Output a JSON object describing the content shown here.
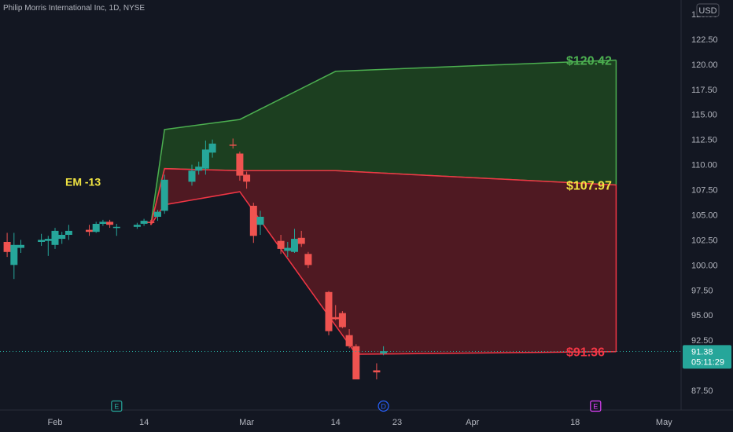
{
  "header": {
    "title": "Philip Morris International Inc, 1D, NYSE",
    "currency": "USD"
  },
  "chart_data": {
    "type": "candlestick",
    "title": "Philip Morris International Inc, 1D, NYSE",
    "ylim": [
      86.0,
      126.0
    ],
    "y_ticks": [
      87.5,
      90.0,
      92.5,
      95.0,
      97.5,
      100.0,
      102.5,
      105.0,
      107.5,
      110.0,
      112.5,
      115.0,
      117.5,
      120.0,
      122.5,
      125.0
    ],
    "y_tick_labels": [
      "87.50",
      "90.00",
      "92.50",
      "95.00",
      "97.50",
      "100.00",
      "102.50",
      "105.00",
      "107.50",
      "110.00",
      "112.50",
      "115.00",
      "117.50",
      "120.00",
      "122.50",
      "125.00"
    ],
    "x_ticks": [
      {
        "label": "Feb",
        "date": "2023-02-01"
      },
      {
        "label": "14",
        "date": "2023-02-14"
      },
      {
        "label": "Mar",
        "date": "2023-03-01"
      },
      {
        "label": "14",
        "date": "2023-03-14"
      },
      {
        "label": "23",
        "date": "2023-03-23"
      },
      {
        "label": "Apr",
        "date": "2023-04-03"
      },
      {
        "label": "18",
        "date": "2023-04-18"
      },
      {
        "label": "May",
        "date": "2023-05-01"
      }
    ],
    "candles": [
      {
        "date": "2023-01-25",
        "open": 102.3,
        "high": 103.2,
        "low": 100.8,
        "close": 101.3
      },
      {
        "date": "2023-01-26",
        "open": 100.0,
        "high": 103.2,
        "low": 98.6,
        "close": 102.0
      },
      {
        "date": "2023-01-27",
        "open": 101.7,
        "high": 102.5,
        "low": 101.2,
        "close": 102.0
      },
      {
        "date": "2023-01-30",
        "open": 102.3,
        "high": 103.1,
        "low": 101.9,
        "close": 102.5
      },
      {
        "date": "2023-01-31",
        "open": 102.4,
        "high": 102.9,
        "low": 100.9,
        "close": 102.6
      },
      {
        "date": "2023-02-01",
        "open": 102.0,
        "high": 103.7,
        "low": 101.6,
        "close": 103.4
      },
      {
        "date": "2023-02-02",
        "open": 102.6,
        "high": 103.3,
        "low": 102.1,
        "close": 103.0
      },
      {
        "date": "2023-02-03",
        "open": 103.0,
        "high": 104.0,
        "low": 102.5,
        "close": 103.4
      },
      {
        "date": "2023-02-06",
        "open": 103.5,
        "high": 104.0,
        "low": 102.9,
        "close": 103.3
      },
      {
        "date": "2023-02-07",
        "open": 103.3,
        "high": 104.3,
        "low": 103.2,
        "close": 104.1
      },
      {
        "date": "2023-02-08",
        "open": 104.1,
        "high": 104.5,
        "low": 103.9,
        "close": 104.3
      },
      {
        "date": "2023-02-09",
        "open": 104.3,
        "high": 104.5,
        "low": 103.7,
        "close": 104.0
      },
      {
        "date": "2023-02-10",
        "open": 103.8,
        "high": 104.1,
        "low": 102.9,
        "close": 103.8
      },
      {
        "date": "2023-02-13",
        "open": 103.8,
        "high": 104.2,
        "low": 103.6,
        "close": 104.0
      },
      {
        "date": "2023-02-14",
        "open": 104.1,
        "high": 104.6,
        "low": 103.9,
        "close": 104.4
      },
      {
        "date": "2023-02-15",
        "open": 104.3,
        "high": 104.5,
        "low": 104.0,
        "close": 104.2
      },
      {
        "date": "2023-02-16",
        "open": 104.8,
        "high": 105.5,
        "low": 104.4,
        "close": 105.3
      },
      {
        "date": "2023-02-17",
        "open": 105.4,
        "high": 109.0,
        "low": 105.1,
        "close": 108.5
      },
      {
        "date": "2023-02-21",
        "open": 108.3,
        "high": 110.0,
        "low": 107.9,
        "close": 109.4
      },
      {
        "date": "2023-02-22",
        "open": 109.4,
        "high": 110.3,
        "low": 109.0,
        "close": 109.8
      },
      {
        "date": "2023-02-23",
        "open": 109.6,
        "high": 112.4,
        "low": 109.0,
        "close": 111.5
      },
      {
        "date": "2023-02-24",
        "open": 111.2,
        "high": 112.5,
        "low": 110.7,
        "close": 112.1
      },
      {
        "date": "2023-02-27",
        "open": 112.0,
        "high": 112.6,
        "low": 111.6,
        "close": 111.9
      },
      {
        "date": "2023-02-28",
        "open": 111.1,
        "high": 111.3,
        "low": 108.4,
        "close": 108.9
      },
      {
        "date": "2023-03-01",
        "open": 109.0,
        "high": 109.3,
        "low": 107.6,
        "close": 108.3
      },
      {
        "date": "2023-03-02",
        "open": 105.9,
        "high": 106.2,
        "low": 102.2,
        "close": 102.9
      },
      {
        "date": "2023-03-03",
        "open": 104.0,
        "high": 105.4,
        "low": 103.0,
        "close": 104.8
      },
      {
        "date": "2023-03-06",
        "open": 102.4,
        "high": 103.0,
        "low": 101.1,
        "close": 101.6
      },
      {
        "date": "2023-03-07",
        "open": 101.4,
        "high": 102.3,
        "low": 100.8,
        "close": 101.7
      },
      {
        "date": "2023-03-08",
        "open": 101.3,
        "high": 103.6,
        "low": 101.2,
        "close": 102.6
      },
      {
        "date": "2023-03-09",
        "open": 102.7,
        "high": 103.4,
        "low": 101.8,
        "close": 102.1
      },
      {
        "date": "2023-03-10",
        "open": 101.1,
        "high": 101.3,
        "low": 99.7,
        "close": 100.0
      },
      {
        "date": "2023-03-13",
        "open": 97.3,
        "high": 97.4,
        "low": 93.0,
        "close": 93.4
      },
      {
        "date": "2023-03-14",
        "open": 94.8,
        "high": 96.0,
        "low": 94.5,
        "close": 94.6
      },
      {
        "date": "2023-03-15",
        "open": 95.2,
        "high": 95.4,
        "low": 93.7,
        "close": 93.8
      },
      {
        "date": "2023-03-16",
        "open": 93.0,
        "high": 93.6,
        "low": 91.7,
        "close": 91.9
      },
      {
        "date": "2023-03-17",
        "open": 91.9,
        "high": 92.1,
        "low": 88.6,
        "close": 88.6
      },
      {
        "date": "2023-03-20",
        "open": 89.5,
        "high": 90.2,
        "low": 88.6,
        "close": 89.3
      },
      {
        "date": "2023-03-21",
        "open": 91.2,
        "high": 91.9,
        "low": 91.0,
        "close": 91.4
      }
    ],
    "bands": [
      {
        "name": "upper",
        "color": "#1e4620",
        "line_color": "#4caf50",
        "top": [
          {
            "date": "2023-02-15",
            "value": 104.0
          },
          {
            "date": "2023-02-17",
            "value": 113.5
          },
          {
            "date": "2023-02-28",
            "value": 114.5
          },
          {
            "date": "2023-03-14",
            "value": 119.3
          },
          {
            "date": "2023-04-24",
            "value": 120.42
          }
        ],
        "bottom": [
          {
            "date": "2023-02-15",
            "value": 104.0
          },
          {
            "date": "2023-02-17",
            "value": 109.6
          },
          {
            "date": "2023-02-28",
            "value": 109.4
          },
          {
            "date": "2023-03-14",
            "value": 109.4
          },
          {
            "date": "2023-04-24",
            "value": 107.97
          }
        ]
      },
      {
        "name": "lower",
        "color": "#5a1a22",
        "line_color": "#f23645",
        "top": [
          {
            "date": "2023-02-15",
            "value": 104.0
          },
          {
            "date": "2023-02-17",
            "value": 109.6
          },
          {
            "date": "2023-02-28",
            "value": 109.4
          },
          {
            "date": "2023-03-14",
            "value": 109.4
          },
          {
            "date": "2023-04-24",
            "value": 107.97
          }
        ],
        "bottom": [
          {
            "date": "2023-02-15",
            "value": 104.0
          },
          {
            "date": "2023-02-17",
            "value": 106.0
          },
          {
            "date": "2023-02-28",
            "value": 107.3
          },
          {
            "date": "2023-03-17",
            "value": 91.1
          },
          {
            "date": "2023-04-24",
            "value": 91.36
          }
        ]
      }
    ],
    "level_labels": [
      {
        "text": "$120.42",
        "value": 120.42,
        "color": "#4caf50"
      },
      {
        "text": "$107.97",
        "value": 107.97,
        "color": "#f0e442"
      },
      {
        "text": "$91.36",
        "value": 91.36,
        "color": "#f23645"
      }
    ],
    "annotation": {
      "text": "EM -13",
      "color": "#f0e442"
    },
    "last_price": {
      "value": 91.38,
      "text": "91.38",
      "countdown": "05:11:29",
      "color": "#26a69a"
    },
    "event_markers": [
      {
        "letter": "E",
        "date": "2023-02-10",
        "color": "#26a69a"
      },
      {
        "letter": "D",
        "date": "2023-03-21",
        "color": "#2962ff"
      },
      {
        "letter": "E",
        "date": "2023-04-21",
        "color": "#e040fb"
      }
    ],
    "colors": {
      "up": "#26a69a",
      "down": "#ef5350",
      "background": "#131722"
    }
  }
}
